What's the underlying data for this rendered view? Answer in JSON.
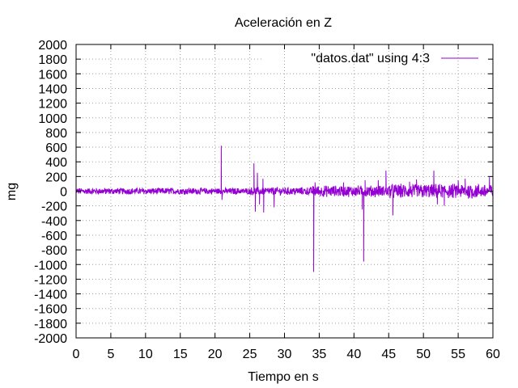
{
  "chart_data": {
    "type": "line",
    "title": "Aceleración en Z",
    "xlabel": "Tiempo en s",
    "ylabel": "mg",
    "xlim": [
      0,
      60
    ],
    "ylim": [
      -2000,
      2000
    ],
    "xticks": [
      0,
      5,
      10,
      15,
      20,
      25,
      30,
      35,
      40,
      45,
      50,
      55,
      60
    ],
    "yticks": [
      -2000,
      -1800,
      -1600,
      -1400,
      -1200,
      -1000,
      -800,
      -600,
      -400,
      -200,
      0,
      200,
      400,
      600,
      800,
      1000,
      1200,
      1400,
      1600,
      1800,
      2000
    ],
    "grid": true,
    "legend_position": "top-right",
    "series": [
      {
        "name": "\"datos.dat\" using 4:3",
        "color": "#9400d3",
        "noise_segments": [
          {
            "x_start": 0,
            "x_end": 25,
            "amplitude": 40
          },
          {
            "x_start": 25,
            "x_end": 34,
            "amplitude": 50
          },
          {
            "x_start": 34,
            "x_end": 45,
            "amplitude": 70
          },
          {
            "x_start": 45,
            "x_end": 60,
            "amplitude": 90
          }
        ],
        "spikes": [
          {
            "x": 20.9,
            "y": 620
          },
          {
            "x": 21.0,
            "y": -120
          },
          {
            "x": 25.6,
            "y": 380
          },
          {
            "x": 25.8,
            "y": -280
          },
          {
            "x": 26.1,
            "y": 250
          },
          {
            "x": 26.4,
            "y": -180
          },
          {
            "x": 26.9,
            "y": 170
          },
          {
            "x": 27.0,
            "y": -290
          },
          {
            "x": 28.5,
            "y": -220
          },
          {
            "x": 34.2,
            "y": -1100
          },
          {
            "x": 34.4,
            "y": 120
          },
          {
            "x": 38.5,
            "y": 120
          },
          {
            "x": 41.2,
            "y": -250
          },
          {
            "x": 41.4,
            "y": -960
          },
          {
            "x": 41.6,
            "y": 150
          },
          {
            "x": 43.5,
            "y": 150
          },
          {
            "x": 44.6,
            "y": 280
          },
          {
            "x": 45.6,
            "y": -330
          },
          {
            "x": 48.0,
            "y": 130
          },
          {
            "x": 49.0,
            "y": 160
          },
          {
            "x": 51.5,
            "y": 280
          },
          {
            "x": 52.0,
            "y": -180
          },
          {
            "x": 53.0,
            "y": -200
          },
          {
            "x": 55.0,
            "y": 150
          },
          {
            "x": 56.0,
            "y": 170
          },
          {
            "x": 57.0,
            "y": -100
          },
          {
            "x": 59.5,
            "y": 190
          }
        ]
      }
    ]
  }
}
